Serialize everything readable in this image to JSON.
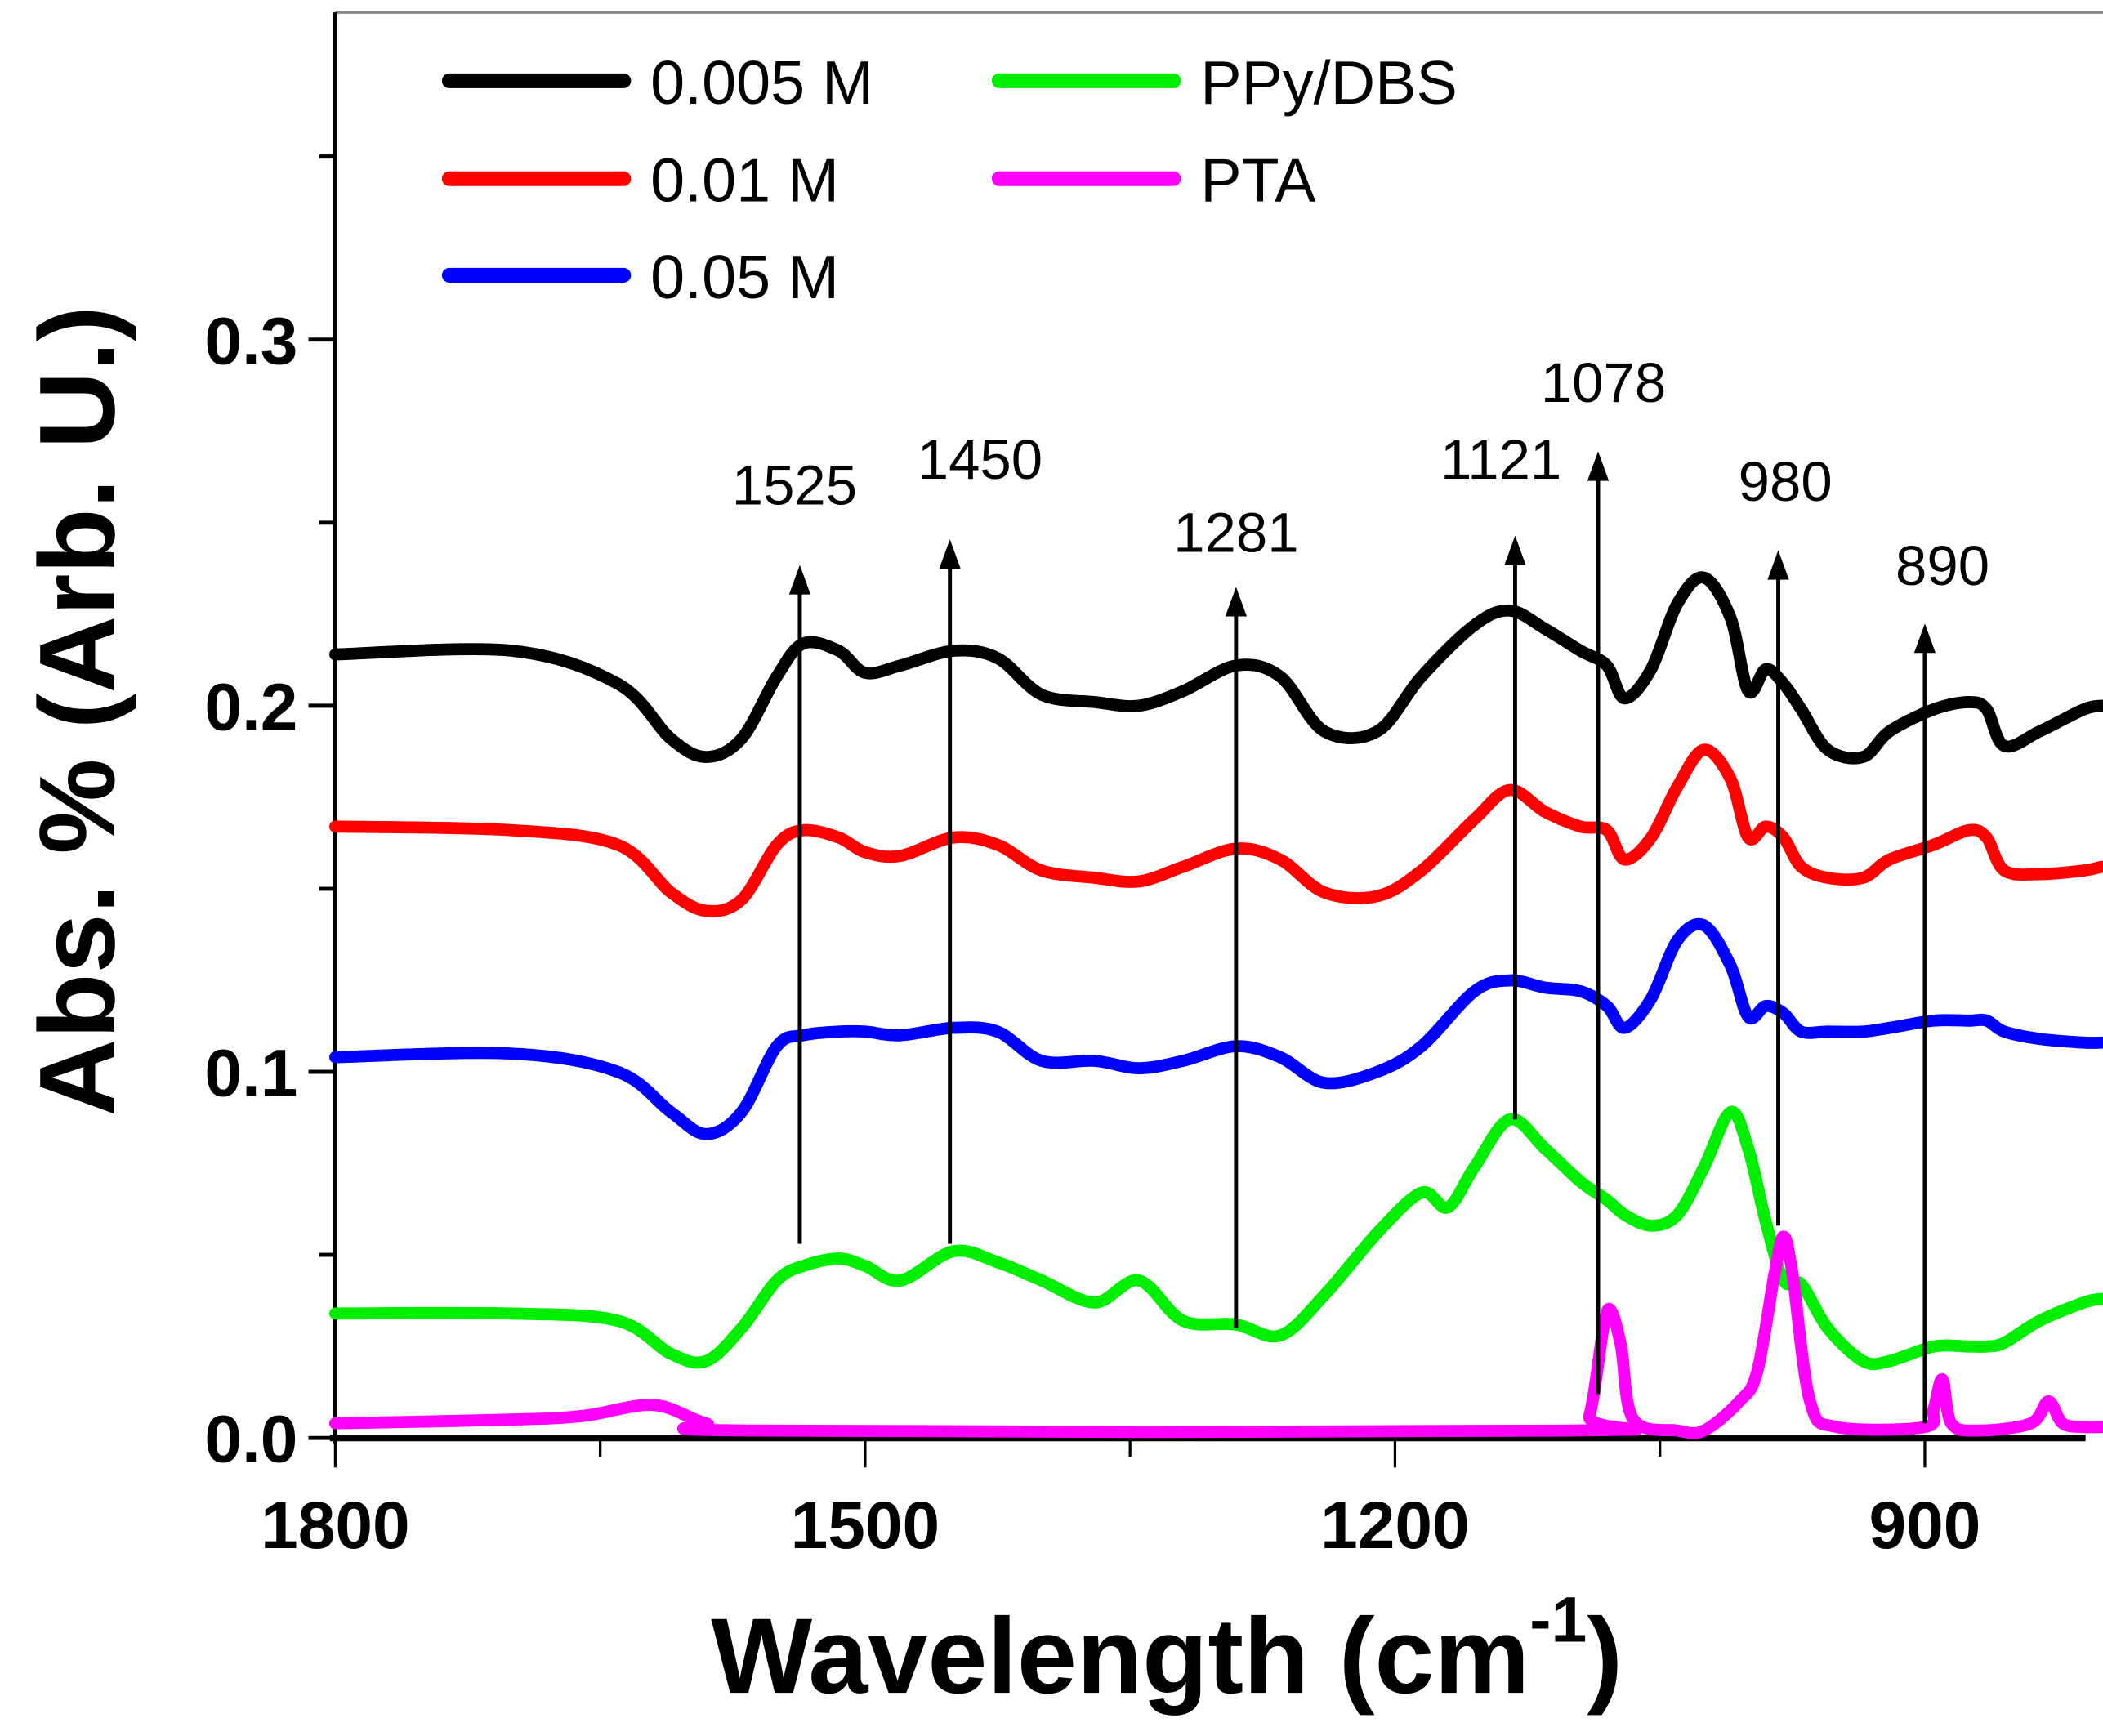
{
  "chart_data": {
    "type": "line",
    "title": "",
    "xlabel": "Wavelength (cm",
    "xlabel_superscript": "-1",
    "xlabel_close": ")",
    "ylabel": "Abs. % (Arb. U.)",
    "xlim": [
      1800,
      800
    ],
    "ylim": [
      0,
      0.39
    ],
    "x_reversed": true,
    "x_ticks": [
      1800,
      1500,
      1200,
      900
    ],
    "x_tick_labels": [
      "1800",
      "1500",
      "1200",
      "900"
    ],
    "x_minor_ticks": [
      1650,
      1350,
      1050
    ],
    "y_ticks": [
      0.0,
      0.1,
      0.2,
      0.3
    ],
    "y_tick_labels": [
      "0.0",
      "0.1",
      "0.2",
      "0.3"
    ],
    "y_minor_ticks": [
      0.05,
      0.15,
      0.25,
      0.35
    ],
    "grid": false,
    "legend_position": "top-left",
    "series": [
      {
        "name": "0.005 M",
        "color": "#000000",
        "x": [
          1800,
          1700,
          1640,
          1610,
          1590,
          1570,
          1550,
          1535,
          1515,
          1500,
          1480,
          1450,
          1425,
          1400,
          1370,
          1345,
          1320,
          1290,
          1265,
          1240,
          1210,
          1185,
          1155,
          1135,
          1115,
          1095,
          1080,
          1070,
          1055,
          1040,
          1025,
          1010,
          1000,
          990,
          980,
          970,
          955,
          935,
          920,
          895,
          875,
          865,
          855,
          835,
          810,
          800
        ],
        "y": [
          0.214,
          0.215,
          0.206,
          0.191,
          0.186,
          0.191,
          0.208,
          0.217,
          0.215,
          0.209,
          0.211,
          0.215,
          0.213,
          0.203,
          0.201,
          0.2,
          0.204,
          0.211,
          0.208,
          0.193,
          0.193,
          0.208,
          0.222,
          0.226,
          0.221,
          0.215,
          0.211,
          0.202,
          0.21,
          0.228,
          0.235,
          0.224,
          0.204,
          0.21,
          0.206,
          0.199,
          0.188,
          0.186,
          0.193,
          0.199,
          0.201,
          0.199,
          0.189,
          0.193,
          0.199,
          0.2
        ]
      },
      {
        "name": "0.01 M",
        "color": "#ff0000",
        "x": [
          1800,
          1700,
          1640,
          1610,
          1590,
          1570,
          1550,
          1535,
          1515,
          1500,
          1480,
          1450,
          1425,
          1400,
          1370,
          1345,
          1320,
          1290,
          1265,
          1240,
          1210,
          1185,
          1155,
          1135,
          1115,
          1095,
          1080,
          1070,
          1055,
          1040,
          1025,
          1010,
          1000,
          990,
          980,
          970,
          955,
          935,
          920,
          895,
          875,
          865,
          855,
          835,
          810,
          800
        ],
        "y": [
          0.167,
          0.166,
          0.162,
          0.149,
          0.144,
          0.147,
          0.162,
          0.166,
          0.164,
          0.16,
          0.159,
          0.164,
          0.162,
          0.155,
          0.153,
          0.152,
          0.156,
          0.161,
          0.158,
          0.149,
          0.148,
          0.155,
          0.169,
          0.177,
          0.171,
          0.167,
          0.166,
          0.158,
          0.164,
          0.178,
          0.188,
          0.18,
          0.164,
          0.167,
          0.164,
          0.156,
          0.153,
          0.153,
          0.158,
          0.162,
          0.166,
          0.164,
          0.155,
          0.154,
          0.155,
          0.156
        ]
      },
      {
        "name": "0.05 M",
        "color": "#0000ff",
        "x": [
          1800,
          1700,
          1640,
          1610,
          1590,
          1570,
          1550,
          1535,
          1515,
          1500,
          1480,
          1450,
          1425,
          1400,
          1370,
          1345,
          1320,
          1290,
          1265,
          1240,
          1210,
          1185,
          1155,
          1135,
          1115,
          1095,
          1080,
          1070,
          1055,
          1040,
          1025,
          1010,
          1000,
          990,
          980,
          970,
          955,
          935,
          920,
          895,
          875,
          865,
          855,
          835,
          810,
          800
        ],
        "y": [
          0.104,
          0.105,
          0.1,
          0.089,
          0.083,
          0.089,
          0.107,
          0.11,
          0.111,
          0.111,
          0.11,
          0.112,
          0.111,
          0.103,
          0.103,
          0.101,
          0.103,
          0.107,
          0.104,
          0.097,
          0.1,
          0.107,
          0.122,
          0.125,
          0.123,
          0.122,
          0.118,
          0.112,
          0.12,
          0.136,
          0.14,
          0.129,
          0.115,
          0.118,
          0.116,
          0.111,
          0.111,
          0.111,
          0.112,
          0.114,
          0.114,
          0.114,
          0.111,
          0.109,
          0.108,
          0.108
        ]
      },
      {
        "name": "PPy/DBS",
        "color": "#00ee00",
        "x": [
          1800,
          1700,
          1640,
          1610,
          1590,
          1570,
          1550,
          1535,
          1515,
          1500,
          1480,
          1450,
          1425,
          1400,
          1370,
          1345,
          1320,
          1290,
          1265,
          1240,
          1210,
          1185,
          1170,
          1155,
          1135,
          1115,
          1095,
          1080,
          1070,
          1055,
          1040,
          1025,
          1010,
          1000,
          990,
          980,
          970,
          955,
          935,
          920,
          895,
          875,
          865,
          855,
          835,
          810,
          800
        ],
        "y": [
          0.034,
          0.034,
          0.032,
          0.023,
          0.021,
          0.03,
          0.043,
          0.047,
          0.049,
          0.047,
          0.043,
          0.051,
          0.048,
          0.043,
          0.037,
          0.043,
          0.032,
          0.031,
          0.028,
          0.039,
          0.056,
          0.067,
          0.063,
          0.074,
          0.087,
          0.079,
          0.07,
          0.065,
          0.061,
          0.058,
          0.061,
          0.074,
          0.089,
          0.079,
          0.059,
          0.043,
          0.042,
          0.03,
          0.021,
          0.021,
          0.025,
          0.025,
          0.025,
          0.026,
          0.032,
          0.037,
          0.038
        ]
      },
      {
        "name": "PTA",
        "color": "#ff00ff",
        "x": [
          1800,
          1700,
          1660,
          1620,
          1590,
          1560,
          1100,
          1090,
          1082,
          1078,
          1072,
          1065,
          1040,
          1025,
          1005,
          995,
          985,
          980,
          975,
          965,
          950,
          900,
          895,
          890,
          885,
          870,
          840,
          830,
          822,
          810,
          800
        ],
        "y": [
          0.004,
          0.005,
          0.006,
          0.009,
          0.004,
          0.002,
          0.002,
          0.006,
          0.03,
          0.035,
          0.025,
          0.005,
          0.002,
          0.002,
          0.01,
          0.018,
          0.045,
          0.055,
          0.045,
          0.01,
          0.003,
          0.003,
          0.008,
          0.016,
          0.004,
          0.002,
          0.004,
          0.01,
          0.004,
          0.003,
          0.003
        ]
      }
    ],
    "annotations": [
      {
        "label": "1525",
        "x": 1537,
        "y_from": 0.053,
        "y_to": 0.237,
        "label_y": 0.255,
        "label_x": 1540
      },
      {
        "label": "1450",
        "x": 1452,
        "y_from": 0.053,
        "y_to": 0.244,
        "label_y": 0.262,
        "label_x": 1435
      },
      {
        "label": "1281",
        "x": 1290,
        "y_from": 0.03,
        "y_to": 0.231,
        "label_y": 0.242,
        "label_x": 1290
      },
      {
        "label": "1121",
        "x": 1132,
        "y_from": 0.087,
        "y_to": 0.245,
        "label_y": 0.262,
        "label_x": 1140
      },
      {
        "label": "1078",
        "x": 1085,
        "y_from": 0.012,
        "y_to": 0.268,
        "label_y": 0.283,
        "label_x": 1082
      },
      {
        "label": "980",
        "x": 983,
        "y_from": 0.058,
        "y_to": 0.241,
        "label_y": 0.256,
        "label_x": 979
      },
      {
        "label": "890",
        "x": 900,
        "y_from": 0.004,
        "y_to": 0.221,
        "label_y": 0.233,
        "label_x": 890
      }
    ]
  }
}
